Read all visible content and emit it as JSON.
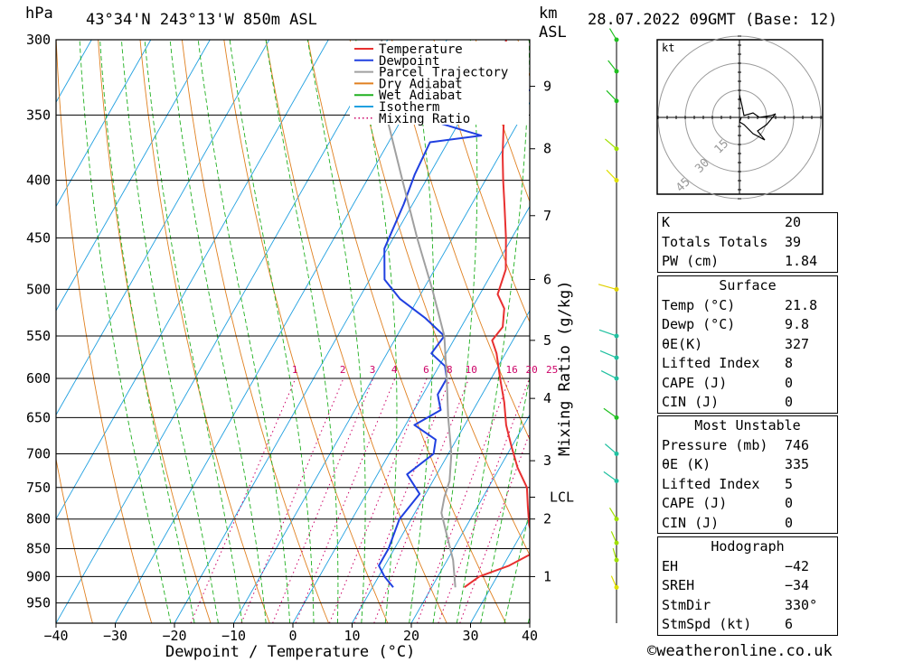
{
  "header": {
    "pressure_unit": "hPa",
    "location": "43°34'N  243°13'W  850m  ASL",
    "km": "km",
    "asl": "ASL",
    "datetime": "28.07.2022  09GMT  (Base: 12)"
  },
  "legend": [
    {
      "label": "Temperature",
      "color": "#e83030",
      "style": "solid"
    },
    {
      "label": "Dewpoint",
      "color": "#2040e0",
      "style": "solid"
    },
    {
      "label": "Parcel Trajectory",
      "color": "#a0a0a0",
      "style": "solid"
    },
    {
      "label": "Dry Adiabat",
      "color": "#e08020",
      "style": "solid"
    },
    {
      "label": "Wet Adiabat",
      "color": "#20b020",
      "style": "solid"
    },
    {
      "label": "Isotherm",
      "color": "#20a0e0",
      "style": "solid"
    },
    {
      "label": "Mixing Ratio",
      "color": "#cc0066",
      "style": "dotted"
    }
  ],
  "chart_data": {
    "type": "line",
    "xlabel": "Dewpoint / Temperature (°C)",
    "ylabel_left": "hPa",
    "ylabel_right": "Mixing Ratio (g/kg)",
    "xlim": [
      -40,
      40
    ],
    "ylim_hPa": [
      990,
      300
    ],
    "x_ticks": [
      "−40",
      "−30",
      "−20",
      "−10",
      "0",
      "10",
      "20",
      "30",
      "40"
    ],
    "x_tick_values": [
      -40,
      -30,
      -20,
      -10,
      0,
      10,
      20,
      30,
      40
    ],
    "pressure_levels": [
      300,
      350,
      400,
      450,
      500,
      550,
      600,
      650,
      700,
      750,
      800,
      850,
      900,
      950
    ],
    "height_ticks_km": [
      {
        "label": "9",
        "p": 330
      },
      {
        "label": "8",
        "p": 375
      },
      {
        "label": "7",
        "p": 430
      },
      {
        "label": "6",
        "p": 490
      },
      {
        "label": "5",
        "p": 555
      },
      {
        "label": "4",
        "p": 625
      },
      {
        "label": "3",
        "p": 710
      },
      {
        "label": "LCL",
        "p": 765
      },
      {
        "label": "2",
        "p": 800
      },
      {
        "label": "1",
        "p": 900
      }
    ],
    "mixing_ratio_lines": [
      1,
      2,
      3,
      4,
      6,
      8,
      10,
      16,
      20,
      25
    ],
    "temperature_color": "#e83030",
    "dewpoint_color": "#2040e0",
    "series": [
      {
        "name": "Temperature",
        "points": [
          [
            920,
            25.5
          ],
          [
            900,
            27.0
          ],
          [
            880,
            31.0
          ],
          [
            860,
            33.5
          ],
          [
            840,
            33.0
          ],
          [
            810,
            30.5
          ],
          [
            780,
            28.5
          ],
          [
            750,
            26.5
          ],
          [
            720,
            23.0
          ],
          [
            690,
            20.0
          ],
          [
            660,
            17.0
          ],
          [
            630,
            14.5
          ],
          [
            600,
            11.5
          ],
          [
            570,
            8.5
          ],
          [
            555,
            6.5
          ],
          [
            540,
            7.0
          ],
          [
            520,
            5.5
          ],
          [
            505,
            3.0
          ],
          [
            480,
            2.0
          ],
          [
            450,
            -1.0
          ],
          [
            420,
            -4.5
          ],
          [
            400,
            -7.0
          ],
          [
            380,
            -9.5
          ],
          [
            355,
            -12.5
          ],
          [
            340,
            -14.5
          ],
          [
            325,
            -16.5
          ],
          [
            310,
            -18.5
          ],
          [
            300,
            -20.0
          ]
        ]
      },
      {
        "name": "Dewpoint",
        "points": [
          [
            920,
            13.5
          ],
          [
            900,
            11.0
          ],
          [
            880,
            9.0
          ],
          [
            850,
            9.0
          ],
          [
            800,
            8.0
          ],
          [
            760,
            9.0
          ],
          [
            730,
            5.0
          ],
          [
            700,
            7.5
          ],
          [
            680,
            6.5
          ],
          [
            660,
            1.5
          ],
          [
            640,
            4.5
          ],
          [
            620,
            2.5
          ],
          [
            600,
            2.5
          ],
          [
            585,
            1.0
          ],
          [
            570,
            -2.5
          ],
          [
            550,
            -2.0
          ],
          [
            530,
            -7.0
          ],
          [
            510,
            -13.0
          ],
          [
            490,
            -17.5
          ],
          [
            460,
            -20.5
          ],
          [
            420,
            -21.5
          ],
          [
            395,
            -22.5
          ],
          [
            370,
            -23.0
          ],
          [
            365,
            -15.0
          ],
          [
            355,
            -24.0
          ],
          [
            345,
            -25.0
          ],
          [
            335,
            -15.0
          ],
          [
            330,
            -7.0
          ],
          [
            325,
            -6.5
          ],
          [
            320,
            -12.0
          ],
          [
            315,
            -12.0
          ],
          [
            305,
            -14.0
          ],
          [
            300,
            -14.0
          ]
        ]
      },
      {
        "name": "Parcel Trajectory",
        "points": [
          [
            920,
            24.0
          ],
          [
            870,
            21.0
          ],
          [
            820,
            17.0
          ],
          [
            790,
            14.5
          ],
          [
            765,
            13.5
          ],
          [
            740,
            12.8
          ],
          [
            700,
            10.5
          ],
          [
            650,
            6.5
          ],
          [
            600,
            2.5
          ],
          [
            550,
            -2.0
          ],
          [
            500,
            -8.5
          ],
          [
            450,
            -16.0
          ],
          [
            400,
            -24.0
          ],
          [
            350,
            -33.0
          ],
          [
            300,
            -41.0
          ]
        ]
      }
    ]
  },
  "hodograph": {
    "unit": "kt",
    "rings": [
      "15",
      "30",
      "45"
    ]
  },
  "indices": {
    "rows": [
      {
        "label": "K",
        "value": "20"
      },
      {
        "label": "Totals Totals",
        "value": "39"
      },
      {
        "label": "PW (cm)",
        "value": "1.84"
      }
    ]
  },
  "surface": {
    "title": "Surface",
    "rows": [
      {
        "label": "Temp (°C)",
        "value": "21.8"
      },
      {
        "label": "Dewp (°C)",
        "value": "9.8"
      },
      {
        "label": "θE(K)",
        "value": "327"
      },
      {
        "label": "Lifted Index",
        "value": "8"
      },
      {
        "label": "CAPE (J)",
        "value": "0"
      },
      {
        "label": "CIN (J)",
        "value": "0"
      }
    ]
  },
  "most_unstable": {
    "title": "Most Unstable",
    "rows": [
      {
        "label": "Pressure (mb)",
        "value": "746"
      },
      {
        "label": "θE (K)",
        "value": "335"
      },
      {
        "label": "Lifted Index",
        "value": "5"
      },
      {
        "label": "CAPE (J)",
        "value": "0"
      },
      {
        "label": "CIN (J)",
        "value": "0"
      }
    ]
  },
  "hodograph_table": {
    "title": "Hodograph",
    "rows": [
      {
        "label": "EH",
        "value": "−42"
      },
      {
        "label": "SREH",
        "value": "−34"
      },
      {
        "label": "StmDir",
        "value": "330°"
      },
      {
        "label": "StmSpd (kt)",
        "value": "6"
      }
    ]
  },
  "credit": "©weatheronline.co.uk"
}
